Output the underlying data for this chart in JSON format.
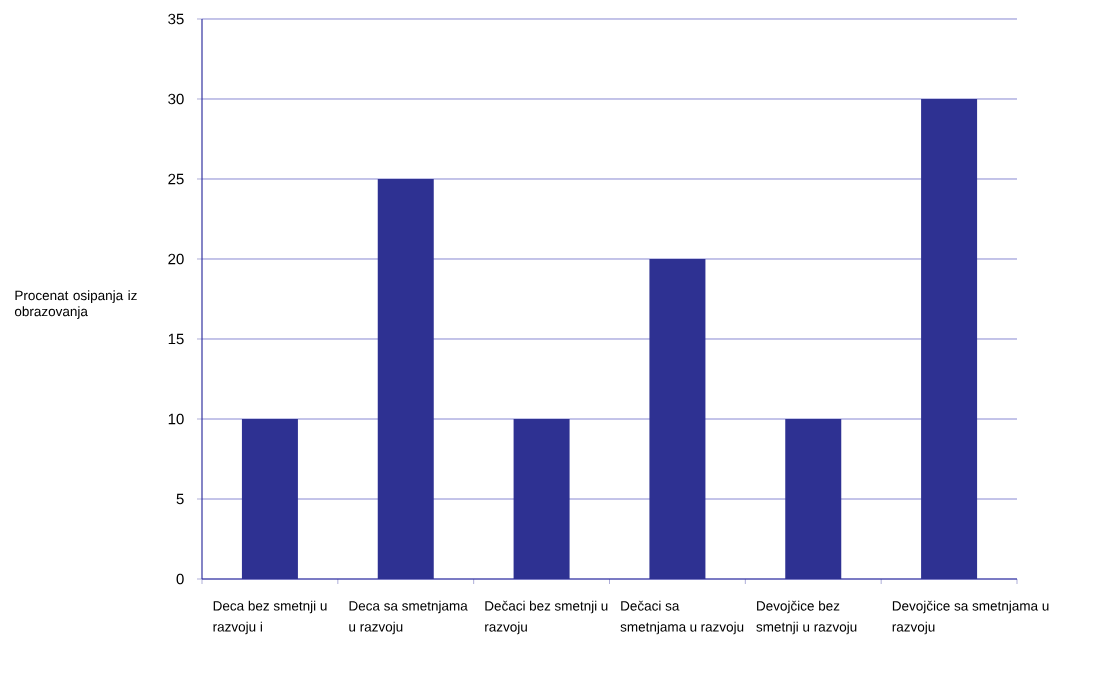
{
  "chart_data": {
    "type": "bar",
    "categories": [
      "Deca bez smetnji u razvoju i",
      "Deca sa smetnjama u razvoju",
      "Dečaci bez smetnji u razvoju",
      "Dečaci sa smetnjama u razvoju",
      "Devojčice bez smetnji u razvoju",
      "Devojčice sa smetnjama u razvoju"
    ],
    "values": [
      10,
      25,
      10,
      20,
      10,
      30
    ],
    "color": "#2e3192",
    "ylabel": "Procenat osipanja iz obrazovanja",
    "ylim": [
      0,
      35
    ],
    "yticks": [
      0,
      5,
      10,
      15,
      20,
      25,
      30,
      35
    ],
    "grid": "y"
  }
}
